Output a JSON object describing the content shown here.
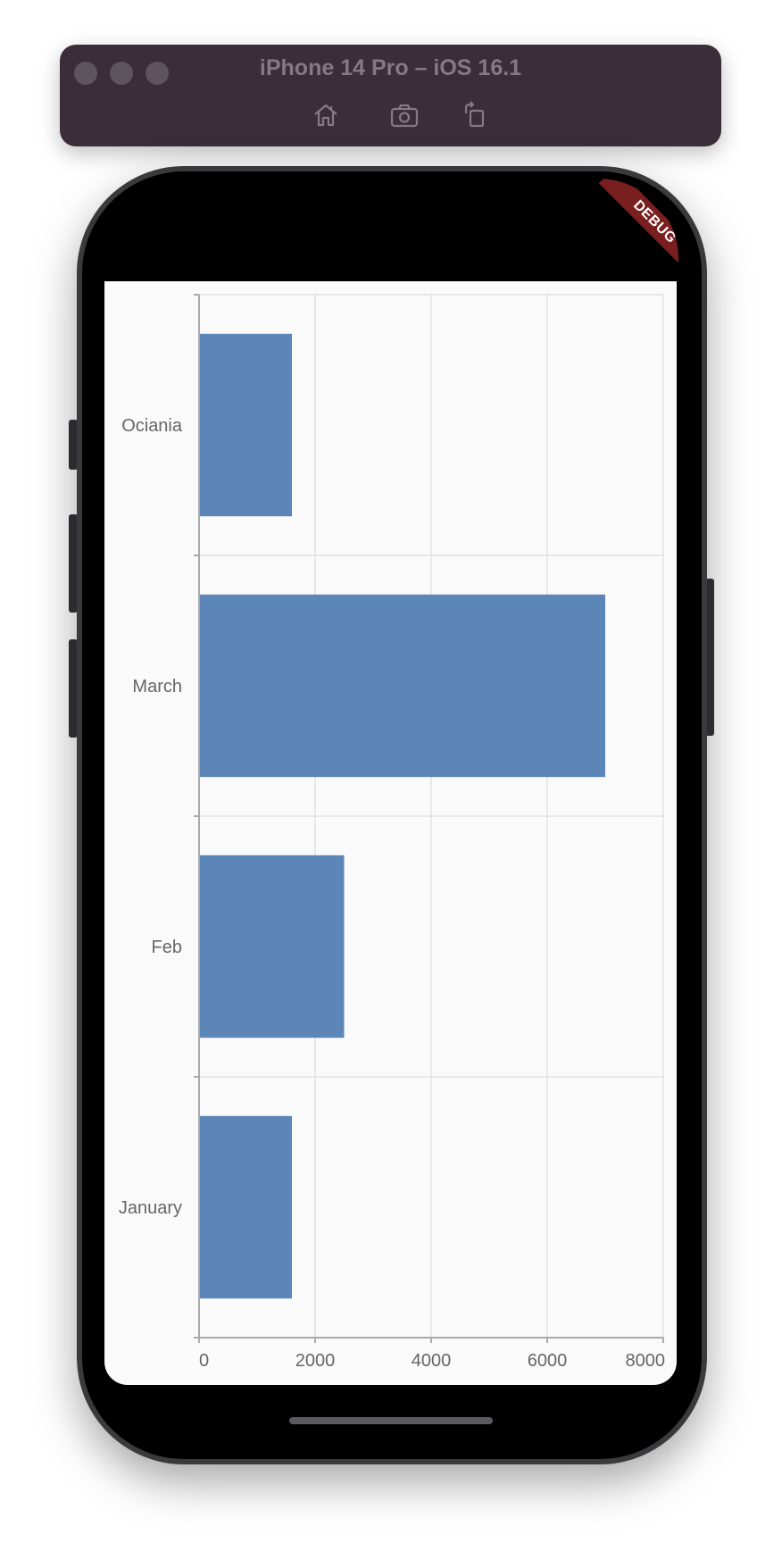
{
  "simulator": {
    "title": "iPhone 14 Pro – iOS 16.1",
    "buttons": [
      "home-icon",
      "camera-icon",
      "rotate-icon"
    ]
  },
  "debug_banner": "DEBUG",
  "colors": {
    "bar": "#5b86b7",
    "grid": "#e2e2e2",
    "axis": "#aaaaaa",
    "label": "#666666"
  },
  "chart_data": {
    "type": "bar",
    "orientation": "horizontal",
    "categories": [
      "Ociania",
      "March",
      "Feb",
      "January"
    ],
    "values": [
      1600,
      7000,
      2500,
      1600
    ],
    "xlim": [
      0,
      8000
    ],
    "xticks": [
      0,
      2000,
      4000,
      6000,
      8000
    ],
    "grid": true
  }
}
